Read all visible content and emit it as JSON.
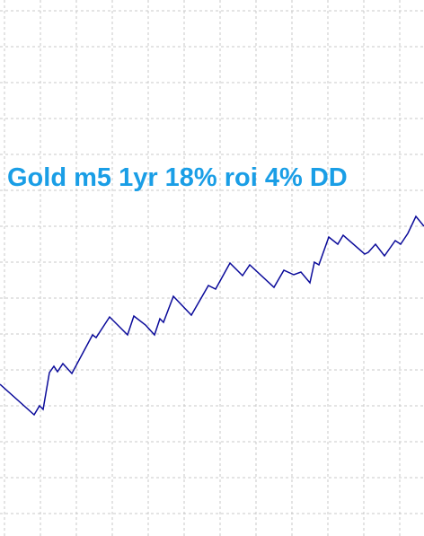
{
  "chart_data": {
    "type": "line",
    "title": "Gold m5 1yr 18% roi 4% DD",
    "x": [
      0,
      38,
      44,
      48,
      55,
      60,
      64,
      70,
      80,
      103,
      107,
      122,
      142,
      149,
      162,
      172,
      178,
      182,
      193,
      213,
      232,
      240,
      256,
      270,
      278,
      305,
      316,
      327,
      335,
      345,
      350,
      355,
      366,
      376,
      382,
      406,
      410,
      418,
      428,
      440,
      446,
      454,
      463,
      472
    ],
    "series": [
      {
        "color": "#0a0a9a",
        "values": [
          169,
          135,
          145,
          141,
          182,
          189,
          183,
          192,
          181,
          224,
          221,
          244,
          224,
          245,
          235,
          224,
          242,
          238,
          267,
          246,
          279,
          275,
          304,
          290,
          302,
          277,
          296,
          291,
          294,
          282,
          305,
          302,
          333,
          325,
          335,
          314,
          316,
          325,
          312,
          329,
          325,
          337,
          356,
          345
        ]
      }
    ],
    "xlim": [
      0,
      472
    ],
    "ylim": [
      0,
      597
    ],
    "xticks": [
      5,
      45,
      85,
      125,
      165,
      205,
      245,
      285,
      325,
      365,
      405,
      445
    ],
    "yticks": [
      25,
      65,
      105,
      145,
      185,
      225,
      265,
      305,
      345,
      385,
      425,
      465,
      505,
      545,
      585
    ],
    "grid": true,
    "title_color": "#1a9ee6"
  }
}
